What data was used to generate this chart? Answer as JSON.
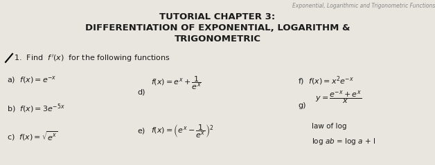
{
  "bg_color": "#d8d4c8",
  "paper_color": "#e8e6de",
  "header_right": "Exponential, Logarithmic and Trigonometric Functions",
  "title1": "TUTORIAL CHAPTER 3:",
  "title2": "DIFFERENTIATION OF EXPONENTIAL, LOGARITHM &",
  "title3": "TRIGONOMETRIC",
  "q1_label": "1.  Find  $f\\,'(x)$  for the following functions",
  "a_text": "a)  $f(x) = e^{-x}$",
  "b_text": "b)  $f(x) = 3e^{-5x}$",
  "c_text": "c)  $f(x) = \\sqrt{e^{x}}$",
  "d_label": "d)",
  "d_text": "$f(x) = e^{x} + \\dfrac{1}{e^{x}}$",
  "e_label": "e)",
  "e_text": "$f(x) = \\left(e^{x} - \\dfrac{1}{e^{x}}\\right)^{2}$",
  "f_text": "f)  $f(x) = x^{2}e^{-x}$",
  "g_label": "g)",
  "g_eq": "$y = \\dfrac{e^{-x}+e^{x}}{x}$",
  "g_extra": "law of log",
  "g_extra2": "log $ab$ = log $a$ + l"
}
